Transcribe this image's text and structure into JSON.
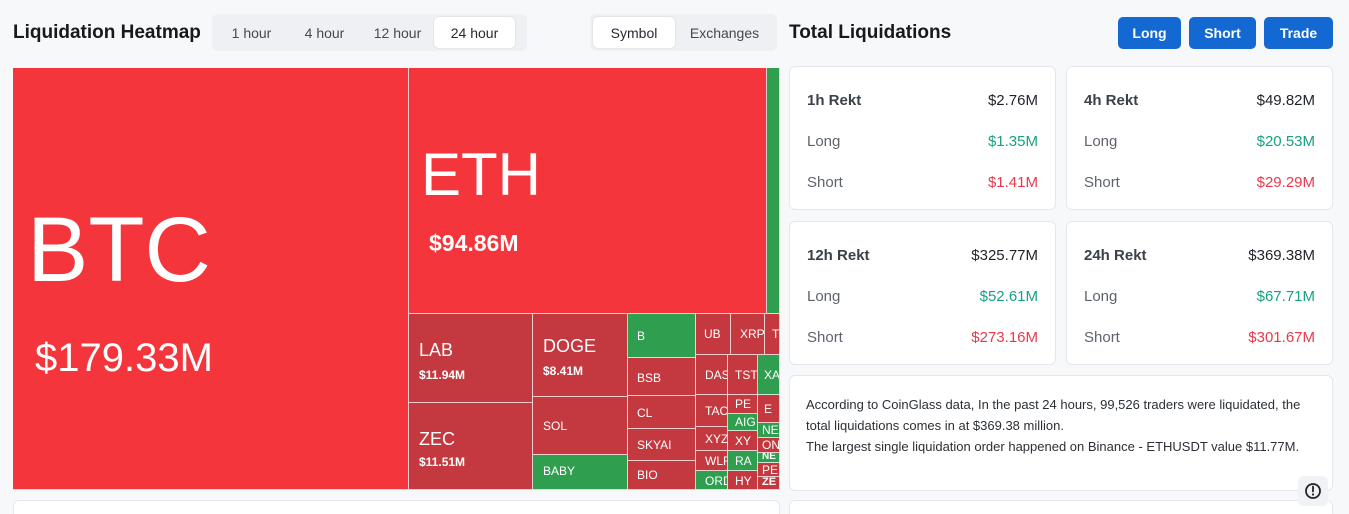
{
  "heatmap": {
    "title": "Liquidation Heatmap",
    "time_options": [
      "1 hour",
      "4 hour",
      "12 hour",
      "24 hour"
    ],
    "time_selected": "24 hour",
    "group_options": [
      "Symbol",
      "Exchanges"
    ],
    "group_selected": "Symbol",
    "tiles": {
      "btc": {
        "symbol": "BTC",
        "value": "$179.33M"
      },
      "eth": {
        "symbol": "ETH",
        "value": "$94.86M"
      },
      "lab": {
        "symbol": "LAB",
        "value": "$11.94M"
      },
      "zec": {
        "symbol": "ZEC",
        "value": "$11.51M"
      },
      "doge": {
        "symbol": "DOGE",
        "value": "$8.41M"
      },
      "sol": {
        "symbol": "SOL"
      },
      "baby": {
        "symbol": "BABY"
      },
      "b": {
        "symbol": "B"
      },
      "bsb": {
        "symbol": "BSB"
      },
      "cl": {
        "symbol": "CL"
      },
      "skyai": {
        "symbol": "SKYAI"
      },
      "bio": {
        "symbol": "BIO"
      },
      "ub": {
        "symbol": "UB"
      },
      "xrp": {
        "symbol": "XRP"
      },
      "t": {
        "symbol": "T"
      },
      "das": {
        "symbol": "DAS"
      },
      "tst": {
        "symbol": "TST"
      },
      "xa": {
        "symbol": "XA"
      },
      "tac": {
        "symbol": "TAC"
      },
      "pe1": {
        "symbol": "PE"
      },
      "e": {
        "symbol": "E"
      },
      "aig": {
        "symbol": "AIG"
      },
      "ne": {
        "symbol": "NE"
      },
      "xyz": {
        "symbol": "XYZ"
      },
      "xy": {
        "symbol": "XY"
      },
      "on": {
        "symbol": "ON"
      },
      "wlf": {
        "symbol": "WLF"
      },
      "ra": {
        "symbol": "RA"
      },
      "ne2": {
        "symbol": "NE"
      },
      "pe2": {
        "symbol": "PE"
      },
      "ord": {
        "symbol": "ORD"
      },
      "hy": {
        "symbol": "HY"
      },
      "ze": {
        "symbol": "ZE"
      }
    }
  },
  "totals": {
    "title": "Total Liquidations",
    "buttons": {
      "long": "Long",
      "short": "Short",
      "trade": "Trade"
    },
    "cards": [
      {
        "label": "1h Rekt",
        "total": "$2.76M",
        "long_label": "Long",
        "long": "$1.35M",
        "short_label": "Short",
        "short": "$1.41M"
      },
      {
        "label": "4h Rekt",
        "total": "$49.82M",
        "long_label": "Long",
        "long": "$20.53M",
        "short_label": "Short",
        "short": "$29.29M"
      },
      {
        "label": "12h Rekt",
        "total": "$325.77M",
        "long_label": "Long",
        "long": "$52.61M",
        "short_label": "Short",
        "short": "$273.16M"
      },
      {
        "label": "24h Rekt",
        "total": "$369.38M",
        "long_label": "Long",
        "long": "$67.71M",
        "short_label": "Short",
        "short": "$301.67M"
      }
    ],
    "summary_line1": "According to CoinGlass data, In the past 24 hours, 99,526 traders were liquidated, the total liquidations comes in at $369.38 million.",
    "summary_line2": "The largest single liquidation order happened on Binance - ETHUSDT value $11.77M."
  },
  "colors": {
    "red": "#f4353b",
    "dark_red": "#c3393f",
    "green": "#2f9e4f",
    "accent": "#1369d1",
    "positive": "#16a085",
    "negative": "#e8394d"
  },
  "icons": {
    "fab": "clock-icon"
  }
}
